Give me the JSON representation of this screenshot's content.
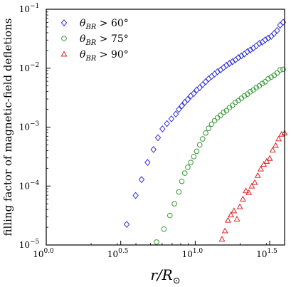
{
  "chart_data": {
    "type": "scatter",
    "xlabel": "r/R⊙",
    "ylabel": "filling factor of magnetic-field defletions",
    "xscale": "log",
    "yscale": "log",
    "xlim_log10": [
      0.0,
      1.6
    ],
    "ylim_log10": [
      -5,
      -1
    ],
    "x_ticks": [
      {
        "value": 0.0,
        "label": "10",
        "exp": "0.0"
      },
      {
        "value": 0.5,
        "label": "10",
        "exp": "0.5"
      },
      {
        "value": 1.0,
        "label": "10",
        "exp": "1.0"
      },
      {
        "value": 1.5,
        "label": "10",
        "exp": "1.5"
      }
    ],
    "y_ticks": [
      {
        "value": -5,
        "label": "10",
        "exp": "−5"
      },
      {
        "value": -4,
        "label": "10",
        "exp": "−4"
      },
      {
        "value": -3,
        "label": "10",
        "exp": "−3"
      },
      {
        "value": -2,
        "label": "10",
        "exp": "−2"
      },
      {
        "value": -1,
        "label": "10",
        "exp": "−1"
      }
    ],
    "legend_position": "top-left",
    "grid": false,
    "series": [
      {
        "name": "θ_BR > 60°",
        "legend_text": {
          "theta": "θ",
          "sub": "BR",
          "rest": " > 60°"
        },
        "marker": "diamond",
        "color": "#3333dd",
        "x_log10": [
          0.54,
          0.6,
          0.64,
          0.68,
          0.72,
          0.75,
          0.78,
          0.81,
          0.84,
          0.87,
          0.89,
          0.91,
          0.93,
          0.95,
          0.97,
          0.99,
          1.01,
          1.03,
          1.05,
          1.07,
          1.09,
          1.11,
          1.13,
          1.15,
          1.17,
          1.19,
          1.21,
          1.23,
          1.25,
          1.27,
          1.29,
          1.31,
          1.33,
          1.35,
          1.37,
          1.39,
          1.41,
          1.43,
          1.45,
          1.47,
          1.49,
          1.51,
          1.53,
          1.55,
          1.57,
          1.59
        ],
        "y_log10": [
          -4.65,
          -4.16,
          -3.89,
          -3.6,
          -3.38,
          -3.18,
          -3.03,
          -2.94,
          -2.86,
          -2.78,
          -2.7,
          -2.64,
          -2.58,
          -2.53,
          -2.47,
          -2.43,
          -2.37,
          -2.33,
          -2.28,
          -2.23,
          -2.18,
          -2.14,
          -2.1,
          -2.06,
          -2.03,
          -1.99,
          -1.95,
          -1.92,
          -1.89,
          -1.86,
          -1.82,
          -1.79,
          -1.76,
          -1.72,
          -1.69,
          -1.66,
          -1.62,
          -1.58,
          -1.56,
          -1.52,
          -1.49,
          -1.46,
          -1.41,
          -1.36,
          -1.27,
          -1.22
        ]
      },
      {
        "name": "θ_BR > 75°",
        "legend_text": {
          "theta": "θ",
          "sub": "BR",
          "rest": " > 75°"
        },
        "marker": "circle",
        "color": "#339933",
        "x_log10": [
          0.74,
          0.79,
          0.83,
          0.86,
          0.89,
          0.91,
          0.93,
          0.95,
          0.97,
          0.99,
          1.01,
          1.03,
          1.05,
          1.07,
          1.09,
          1.11,
          1.13,
          1.15,
          1.17,
          1.19,
          1.21,
          1.23,
          1.25,
          1.27,
          1.29,
          1.31,
          1.33,
          1.35,
          1.37,
          1.39,
          1.41,
          1.43,
          1.45,
          1.47,
          1.49,
          1.51,
          1.53,
          1.55,
          1.57,
          1.59
        ],
        "y_log10": [
          -4.95,
          -4.73,
          -4.5,
          -4.3,
          -4.1,
          -3.92,
          -3.78,
          -3.68,
          -3.6,
          -3.5,
          -3.41,
          -3.3,
          -3.2,
          -3.1,
          -3.02,
          -2.95,
          -2.89,
          -2.84,
          -2.8,
          -2.75,
          -2.72,
          -2.67,
          -2.63,
          -2.58,
          -2.55,
          -2.51,
          -2.47,
          -2.44,
          -2.4,
          -2.37,
          -2.33,
          -2.3,
          -2.26,
          -2.23,
          -2.18,
          -2.15,
          -2.12,
          -2.08,
          -2.03,
          -2.02
        ]
      },
      {
        "name": "θ_BR > 90°",
        "legend_text": {
          "theta": "θ",
          "sub": "BR",
          "rest": " > 90°"
        },
        "marker": "triangle",
        "color": "#dd2222",
        "x_log10": [
          1.18,
          1.2,
          1.22,
          1.24,
          1.26,
          1.28,
          1.3,
          1.32,
          1.34,
          1.36,
          1.38,
          1.4,
          1.42,
          1.44,
          1.46,
          1.48,
          1.5,
          1.52,
          1.54,
          1.56,
          1.58,
          1.6
        ],
        "y_log10": [
          -4.9,
          -4.76,
          -4.58,
          -4.49,
          -4.42,
          -4.56,
          -4.35,
          -4.22,
          -4.08,
          -4.11,
          -4.0,
          -3.94,
          -3.82,
          -3.71,
          -3.63,
          -3.58,
          -3.53,
          -3.39,
          -3.31,
          -3.2,
          -3.12,
          -3.1
        ]
      }
    ]
  }
}
